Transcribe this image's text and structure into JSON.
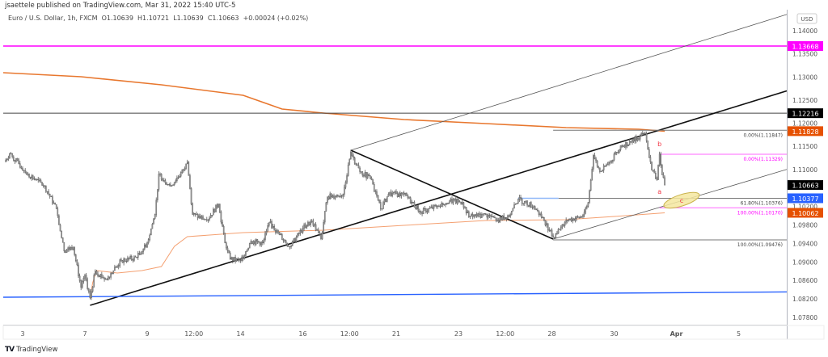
{
  "header": {
    "published": "jsaettele published on TradingView.com, Mar 31, 2022 15:40 UTC-5",
    "legend": "Euro / U.S. Dollar, 1h, FXCM  O1.10639  H1.10721  L1.10639  C1.10663  +0.00024 (+0.02%)"
  },
  "footer": {
    "brand": "TradingView",
    "logo_icon": "tradingview-logo-icon"
  },
  "chart_data": {
    "type": "candlestick",
    "symbol": "EURUSD",
    "interval": "1h",
    "currency_label": "USD",
    "ylim": [
      1.0765,
      1.1445
    ],
    "grid": false,
    "trading_dates": [
      "03-02",
      "03-03",
      "03-04",
      "03-07",
      "03-08",
      "03-09",
      "03-10",
      "03-11",
      "03-14",
      "03-15",
      "03-16",
      "03-17",
      "03-18",
      "03-21",
      "03-22",
      "03-23",
      "03-24",
      "03-25",
      "03-28",
      "03-29",
      "03-30",
      "03-31",
      "04-01",
      "04-04",
      "04-05",
      "04-06"
    ],
    "x_tick_labels": [
      {
        "t": "03-03 00:00",
        "label": "3",
        "bold": false
      },
      {
        "t": "03-07 00:00",
        "label": "7",
        "bold": false
      },
      {
        "t": "03-09 00:00",
        "label": "9",
        "bold": false
      },
      {
        "t": "03-10 12:00",
        "label": "12:00",
        "bold": false
      },
      {
        "t": "03-14 00:00",
        "label": "14",
        "bold": false
      },
      {
        "t": "03-16 00:00",
        "label": "16",
        "bold": false
      },
      {
        "t": "03-17 12:00",
        "label": "12:00",
        "bold": false
      },
      {
        "t": "03-21 00:00",
        "label": "21",
        "bold": false
      },
      {
        "t": "03-23 00:00",
        "label": "23",
        "bold": false
      },
      {
        "t": "03-24 12:00",
        "label": "12:00",
        "bold": false
      },
      {
        "t": "03-28 00:00",
        "label": "28",
        "bold": false
      },
      {
        "t": "03-30 00:00",
        "label": "30",
        "bold": false
      },
      {
        "t": "04-01 00:00",
        "label": "Apr",
        "bold": true
      },
      {
        "t": "04-05 00:00",
        "label": "5",
        "bold": false
      }
    ],
    "y_tick_labels": [
      "1.14000",
      "1.13500",
      "1.13000",
      "1.12500",
      "1.12000",
      "1.11500",
      "1.11000",
      "1.10200",
      "1.09800",
      "1.09400",
      "1.09000",
      "1.08600",
      "1.08200",
      "1.07800"
    ],
    "price_path": [
      [
        "03-02 10:00",
        1.11163
      ],
      [
        "03-02 14:00",
        1.11338
      ],
      [
        "03-03 04:00",
        1.10901
      ],
      [
        "03-03 17:00",
        1.10638
      ],
      [
        "03-04 02:00",
        1.10148
      ],
      [
        "03-04 08:00",
        1.09237
      ],
      [
        "03-04 15:00",
        1.09325
      ],
      [
        "03-04 21:00",
        1.08449
      ],
      [
        "03-07 00:00",
        1.08712
      ],
      [
        "03-07 04:00",
        1.08222
      ],
      [
        "03-07 08:00",
        1.088
      ],
      [
        "03-07 16:00",
        1.08624
      ],
      [
        "03-08 04:00",
        1.09027
      ],
      [
        "03-08 16:00",
        1.09097
      ],
      [
        "03-09 00:00",
        1.09412
      ],
      [
        "03-09 06:00",
        1.10025
      ],
      [
        "03-09 09:00",
        1.10901
      ],
      [
        "03-09 18:00",
        1.10638
      ],
      [
        "03-10 05:00",
        1.11023
      ],
      [
        "03-10 07:00",
        1.11163
      ],
      [
        "03-10 11:00",
        1.10025
      ],
      [
        "03-10 22:00",
        1.09903
      ],
      [
        "03-11 07:00",
        1.10253
      ],
      [
        "03-11 12:00",
        1.09412
      ],
      [
        "03-11 16:00",
        1.09062
      ],
      [
        "03-14 00:00",
        1.09027
      ],
      [
        "03-14 08:00",
        1.09447
      ],
      [
        "03-14 17:00",
        1.09412
      ],
      [
        "03-14 22:00",
        1.0985
      ],
      [
        "03-15 06:00",
        1.09587
      ],
      [
        "03-15 14:00",
        1.09325
      ],
      [
        "03-16 00:00",
        1.09728
      ],
      [
        "03-16 07:00",
        1.09885
      ],
      [
        "03-16 14:00",
        1.095
      ],
      [
        "03-16 19:00",
        1.1041
      ],
      [
        "03-17 07:00",
        1.10463
      ],
      [
        "03-17 13:00",
        1.11373
      ],
      [
        "03-17 20:00",
        1.10953
      ],
      [
        "03-18 04:00",
        1.10813
      ],
      [
        "03-18 12:00",
        1.10148
      ],
      [
        "03-18 18:00",
        1.10463
      ],
      [
        "03-21 06:00",
        1.10463
      ],
      [
        "03-21 19:00",
        1.10078
      ],
      [
        "03-22 07:00",
        1.102
      ],
      [
        "03-22 17:00",
        1.10323
      ],
      [
        "03-23 03:00",
        1.10288
      ],
      [
        "03-23 08:00",
        1.09973
      ],
      [
        "03-23 21:00",
        1.10025
      ],
      [
        "03-24 06:00",
        1.09903
      ],
      [
        "03-24 16:00",
        1.10025
      ],
      [
        "03-24 22:00",
        1.10358
      ],
      [
        "03-25 10:00",
        1.102
      ],
      [
        "03-25 18:00",
        1.09903
      ],
      [
        "03-28 01:00",
        1.09535
      ],
      [
        "03-28 11:00",
        1.09903
      ],
      [
        "03-28 23:00",
        1.09973
      ],
      [
        "03-29 04:00",
        1.10288
      ],
      [
        "03-29 08:00",
        1.11303
      ],
      [
        "03-29 13:00",
        1.10953
      ],
      [
        "03-29 21:00",
        1.11163
      ],
      [
        "03-30 05:00",
        1.11514
      ],
      [
        "03-30 13:00",
        1.11584
      ],
      [
        "03-30 20:00",
        1.11724
      ],
      [
        "03-31 00:00",
        1.11776
      ],
      [
        "03-31 05:00",
        1.10988
      ],
      [
        "03-31 09:00",
        1.10778
      ],
      [
        "03-31 11:00",
        1.11338
      ],
      [
        "03-31 13:00",
        1.10883
      ],
      [
        "03-31 15:00",
        1.10663
      ]
    ],
    "indicators": [
      {
        "color": "#e8772e",
        "width": 1.6,
        "points": [
          [
            "03-02 09:00",
            1.13092
          ],
          [
            "03-04 21:00",
            1.13005
          ],
          [
            "03-09 11:00",
            1.1283
          ],
          [
            "03-14 02:00",
            1.12603
          ],
          [
            "03-15 08:00",
            1.12306
          ],
          [
            "03-16 16:00",
            1.12219
          ],
          [
            "03-21 06:00",
            1.12079
          ],
          [
            "03-23 21:00",
            1.11992
          ],
          [
            "03-28 11:00",
            1.11904
          ],
          [
            "03-30 19:00",
            1.11869
          ],
          [
            "03-31 15:00",
            1.11828
          ]
        ]
      },
      {
        "color": "#f4a071",
        "width": 1,
        "points": [
          [
            "03-07 04:00",
            1.08202
          ],
          [
            "03-07 06:00",
            1.08551
          ],
          [
            "03-07 09:00",
            1.08813
          ],
          [
            "03-08 01:00",
            1.0876
          ],
          [
            "03-08 20:00",
            1.08813
          ],
          [
            "03-09 11:00",
            1.08901
          ],
          [
            "03-09 21:00",
            1.09337
          ],
          [
            "03-10 07:00",
            1.09547
          ],
          [
            "03-14 02:00",
            1.09634
          ],
          [
            "03-16 16:00",
            1.09686
          ],
          [
            "03-21 06:00",
            1.09791
          ],
          [
            "03-23 21:00",
            1.09896
          ],
          [
            "03-28 11:00",
            1.09913
          ],
          [
            "03-30 00:00",
            1.09983
          ],
          [
            "03-31 15:00",
            1.10062
          ]
        ]
      }
    ],
    "horizontal_lines": [
      {
        "price": 1.13668,
        "color": "#ff00ff",
        "width": 1.5
      },
      {
        "price": 1.12216,
        "color": "#444444",
        "width": 1
      }
    ],
    "trend_lines": [
      {
        "name": "support-trendline",
        "p1": [
          "03-07 04:00",
          1.08062
        ],
        "p2": [
          "03-31 01:00",
          1.11765
        ],
        "color": "#111111",
        "width": 1.6,
        "extend": "right"
      },
      {
        "name": "falling-trendline",
        "p1": [
          "03-17 13:00",
          1.11415
        ],
        "p2": [
          "03-28 01:00",
          1.09494
        ],
        "color": "#111111",
        "width": 1.6,
        "extend": "none"
      },
      {
        "name": "upper-channel-line",
        "p1": [
          "03-17 13:00",
          1.11415
        ],
        "p2": [
          "03-28 01:00",
          1.12778
        ],
        "color": "#555555",
        "width": 0.8,
        "extend": "right"
      },
      {
        "name": "lower-channel-line",
        "p1": [
          "03-28 01:00",
          1.09494
        ],
        "p2": [
          "03-31 16:00",
          1.10222
        ],
        "color": "#555555",
        "width": 0.8,
        "extend": "right"
      },
      {
        "name": "blue-support-line",
        "p1": [
          "03-02 09:00",
          1.08237
        ],
        "p2": [
          "03-28 01:00",
          1.08317
        ],
        "color": "#2962ff",
        "width": 1.4,
        "extend": "both"
      }
    ],
    "fib_levels": [
      {
        "label": "0.00%(1.11847)",
        "price": 1.11847,
        "start": "03-28 01:00",
        "color": "#777777",
        "text_color": "#444444"
      },
      {
        "label": "61.80%(1.10376)",
        "price": 1.10376,
        "start": "03-24 22:00",
        "color": "#777777",
        "text_color": "#444444",
        "lead_color": "#90b8f8"
      },
      {
        "label": "100.00%(1.09476)",
        "price": 1.09476,
        "start": "03-28 01:00",
        "color": "#777777",
        "text_color": "#444444"
      },
      {
        "label": "0.00%(1.11329)",
        "price": 1.11329,
        "start": "03-31 11:00",
        "color": "#ff66ff",
        "text_color": "#ff00ff"
      },
      {
        "label": "100.00%(1.10170)",
        "price": 1.1017,
        "start": "03-31 11:00",
        "color": "#ff66ff",
        "text_color": "#ff00ff"
      }
    ],
    "annotations": [
      {
        "text": "b",
        "t": "03-31 11:00",
        "price": 1.11555,
        "color": "#f23645"
      },
      {
        "text": "a",
        "t": "03-31 11:00",
        "price": 1.10525,
        "color": "#f23645"
      },
      {
        "text": "c",
        "t": "04-01 04:00",
        "price": 1.10333,
        "color": "#f23645"
      }
    ],
    "highlight_ellipse": {
      "t": "04-01 04:00",
      "price": 1.10333,
      "fill": "#f5e7a0",
      "stroke": "#c9b24a"
    },
    "price_tags": [
      {
        "value": "1.13668",
        "bg": "#ff00ff",
        "fg": "#ffffff"
      },
      {
        "value": "1.12216",
        "bg": "#000000",
        "fg": "#ffffff"
      },
      {
        "value": "1.11828",
        "bg": "#e65100",
        "fg": "#ffffff"
      },
      {
        "value": "1.10663",
        "bg": "#000000",
        "fg": "#ffffff"
      },
      {
        "value": "1.10377",
        "bg": "#2962ff",
        "fg": "#ffffff"
      },
      {
        "value": "1.10062",
        "bg": "#e65100",
        "fg": "#ffffff"
      }
    ]
  }
}
